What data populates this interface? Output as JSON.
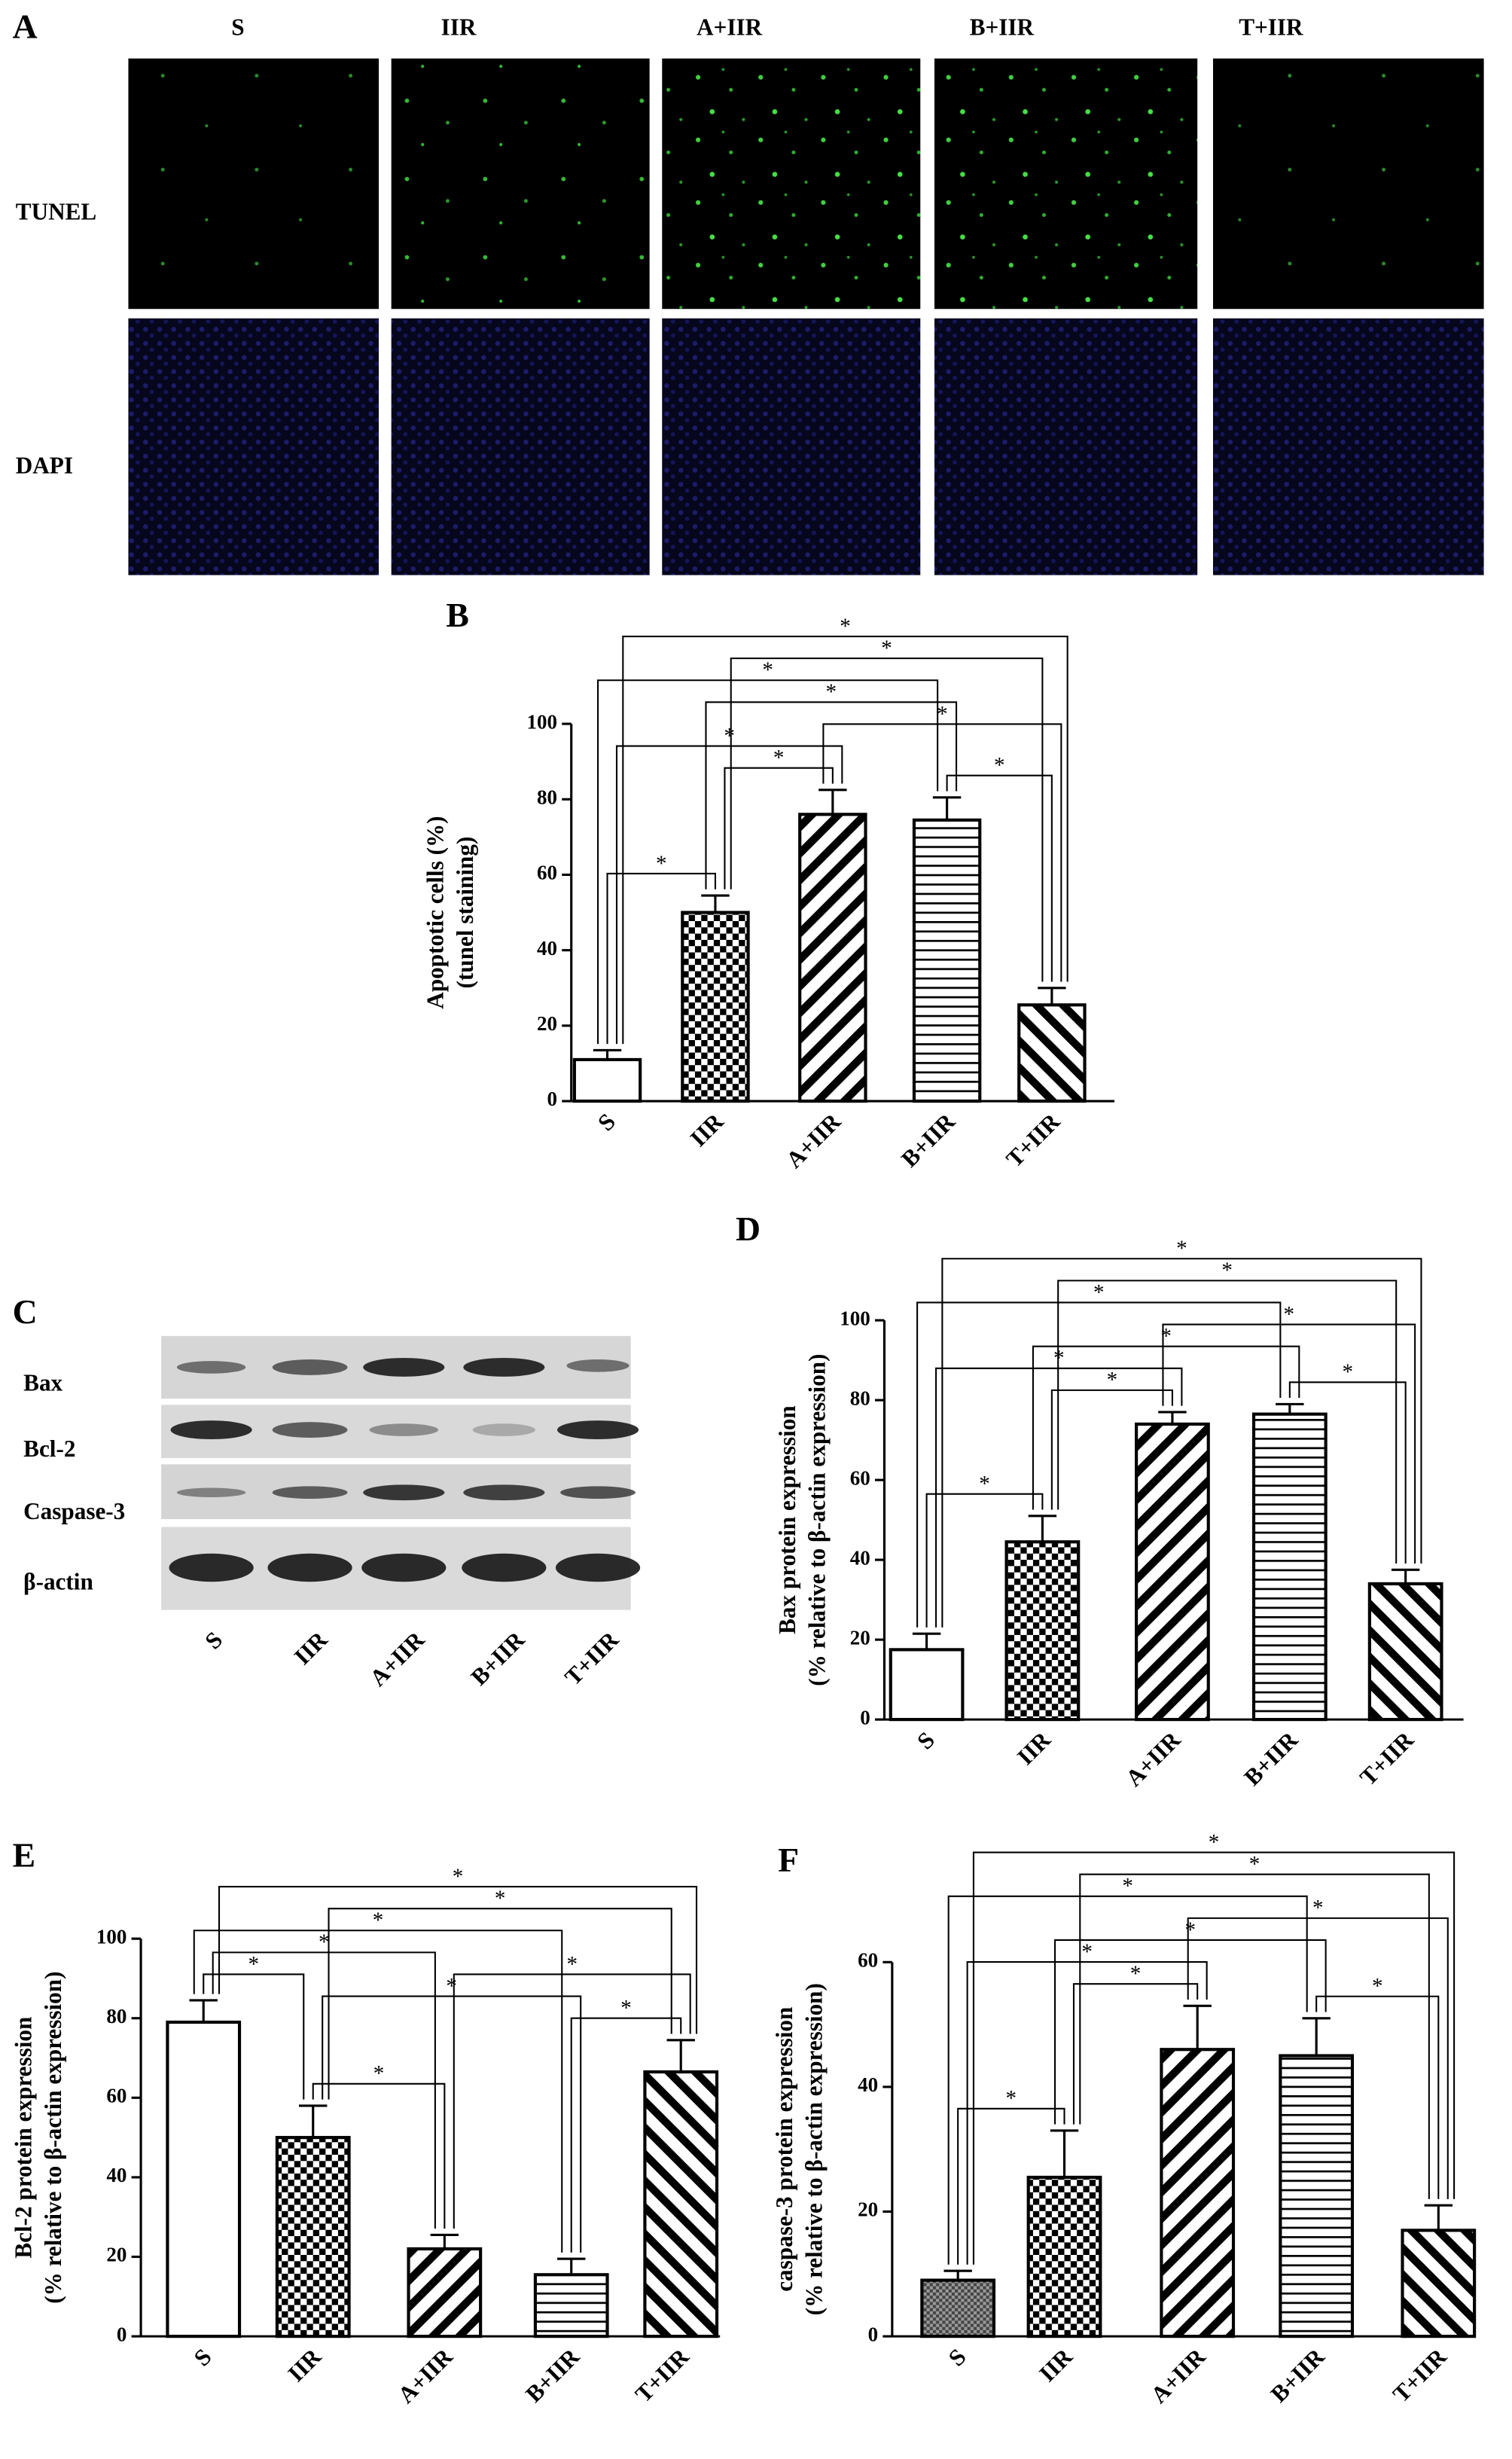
{
  "panel_a": {
    "label": "A",
    "columns": [
      "S",
      "IIR",
      "A+IIR",
      "B+IIR",
      "T+IIR"
    ],
    "rows": [
      "TUNEL",
      "DAPI"
    ]
  },
  "panel_c": {
    "label": "C",
    "bands": [
      "Bax",
      "Bcl-2",
      "Caspase-3",
      "β-actin"
    ],
    "lanes": [
      "S",
      "IIR",
      "A+IIR",
      "B+IIR",
      "T+IIR"
    ]
  },
  "chart_data": [
    {
      "type": "bar",
      "panel": "B",
      "ylabel": [
        "Apoptotic cells (%)",
        "(tunel staining)"
      ],
      "categories": [
        "S",
        "IIR",
        "A+IIR",
        "B+IIR",
        "T+IIR"
      ],
      "values": [
        11,
        50,
        76,
        74.5,
        25.5
      ],
      "errors": [
        2.5,
        4.5,
        6.5,
        6,
        4.5
      ],
      "patterns": [
        "none",
        "checker",
        "diagonal",
        "horizontal",
        "backdiagonal"
      ],
      "ylim": [
        0,
        100
      ],
      "yticks": [
        0,
        20,
        40,
        60,
        80,
        100
      ],
      "comparisons": [
        {
          "between": [
            0,
            1
          ],
          "label": "*"
        },
        {
          "between": [
            3,
            4
          ],
          "label": "*"
        },
        {
          "between": [
            1,
            2
          ],
          "label": "*"
        },
        {
          "between": [
            0,
            2
          ],
          "label": "*"
        },
        {
          "between": [
            2,
            4
          ],
          "label": "*"
        },
        {
          "between": [
            1,
            3
          ],
          "label": "*"
        },
        {
          "between": [
            0,
            3
          ],
          "label": "*"
        },
        {
          "between": [
            1,
            4
          ],
          "label": "*"
        },
        {
          "between": [
            0,
            4
          ],
          "label": "*"
        }
      ]
    },
    {
      "type": "bar",
      "panel": "D",
      "ylabel": [
        "Bax protein expression",
        "(% relative to β-actin expression)"
      ],
      "categories": [
        "S",
        "IIR",
        "A+IIR",
        "B+IIR",
        "T+IIR"
      ],
      "values": [
        17.5,
        44.5,
        74,
        76.5,
        34
      ],
      "errors": [
        4,
        6.5,
        3,
        2.5,
        3.5
      ],
      "patterns": [
        "none",
        "checker",
        "diagonal",
        "horizontal",
        "backdiagonal"
      ],
      "ylim": [
        0,
        100
      ],
      "yticks": [
        0,
        20,
        40,
        60,
        80,
        100
      ],
      "comparisons": [
        {
          "between": [
            0,
            1
          ],
          "label": "*"
        },
        {
          "between": [
            3,
            4
          ],
          "label": "*"
        },
        {
          "between": [
            1,
            2
          ],
          "label": "*"
        },
        {
          "between": [
            0,
            2
          ],
          "label": "*"
        },
        {
          "between": [
            1,
            3
          ],
          "label": "*"
        },
        {
          "between": [
            2,
            4
          ],
          "label": "*"
        },
        {
          "between": [
            0,
            3
          ],
          "label": "*"
        },
        {
          "between": [
            1,
            4
          ],
          "label": "*"
        },
        {
          "between": [
            0,
            4
          ],
          "label": "*"
        }
      ]
    },
    {
      "type": "bar",
      "panel": "E",
      "ylabel": [
        "Bcl-2 protein expression",
        "(% relative to β-actin expression)"
      ],
      "categories": [
        "S",
        "IIR",
        "A+IIR",
        "B+IIR",
        "T+IIR"
      ],
      "values": [
        79,
        50,
        22,
        15.5,
        66.5
      ],
      "errors": [
        5.5,
        8,
        3.5,
        4,
        8
      ],
      "patterns": [
        "none",
        "checker",
        "diagonal",
        "horizontal",
        "backdiagonal"
      ],
      "ylim": [
        0,
        100
      ],
      "yticks": [
        0,
        20,
        40,
        60,
        80,
        100
      ],
      "comparisons": [
        {
          "between": [
            1,
            2
          ],
          "label": "*"
        },
        {
          "between": [
            3,
            4
          ],
          "label": "*"
        },
        {
          "between": [
            1,
            3
          ],
          "label": "*"
        },
        {
          "between": [
            0,
            1
          ],
          "label": "*"
        },
        {
          "between": [
            2,
            4
          ],
          "label": "*"
        },
        {
          "between": [
            0,
            2
          ],
          "label": "*"
        },
        {
          "between": [
            0,
            3
          ],
          "label": "*"
        },
        {
          "between": [
            1,
            4
          ],
          "label": "*"
        },
        {
          "between": [
            0,
            4
          ],
          "label": "*"
        }
      ]
    },
    {
      "type": "bar",
      "panel": "F",
      "ylabel": [
        "caspase-3 protein expression",
        "(% relative to β-actin expression)"
      ],
      "categories": [
        "S",
        "IIR",
        "A+IIR",
        "B+IIR",
        "T+IIR"
      ],
      "values": [
        9,
        25.5,
        46,
        45,
        17
      ],
      "errors": [
        1.5,
        7.5,
        7,
        6,
        4
      ],
      "patterns": [
        "crosshatch",
        "checker",
        "diagonal",
        "horizontal",
        "backdiagonal"
      ],
      "ylim": [
        0,
        60
      ],
      "yticks": [
        0,
        20,
        40,
        60
      ],
      "comparisons": [
        {
          "between": [
            0,
            1
          ],
          "label": "*"
        },
        {
          "between": [
            3,
            4
          ],
          "label": "*"
        },
        {
          "between": [
            1,
            2
          ],
          "label": "*"
        },
        {
          "between": [
            0,
            2
          ],
          "label": "*"
        },
        {
          "between": [
            1,
            3
          ],
          "label": "*"
        },
        {
          "between": [
            2,
            4
          ],
          "label": "*"
        },
        {
          "between": [
            0,
            3
          ],
          "label": "*"
        },
        {
          "between": [
            1,
            4
          ],
          "label": "*"
        },
        {
          "between": [
            0,
            4
          ],
          "label": "*"
        }
      ]
    }
  ]
}
